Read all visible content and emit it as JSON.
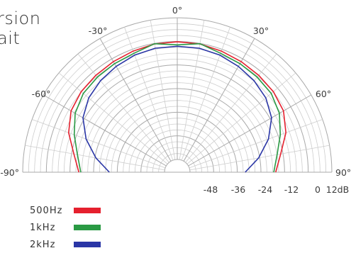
{
  "header": {
    "line1": "rsion",
    "line2": "ait"
  },
  "chart_data": {
    "type": "line",
    "subtype": "polar-half (directivity)",
    "angle_range_deg": [
      -90,
      90
    ],
    "radial_range_db": [
      -60,
      12
    ],
    "angle_labels": [
      "-90°",
      "-60°",
      "-30°",
      "0°",
      "30°",
      "60°",
      "90°"
    ],
    "db_tick_labels": [
      "-48",
      "-36",
      "-24",
      "-12",
      "0",
      "12dB"
    ],
    "db_tick_values": [
      -48,
      -36,
      -24,
      -12,
      0,
      12
    ],
    "grid": true,
    "legend_placement": "bottom-left",
    "angles": [
      -90,
      -80,
      -70,
      -60,
      -50,
      -40,
      -30,
      -20,
      -10,
      0,
      10,
      20,
      30,
      40,
      50,
      60,
      70,
      80,
      90
    ],
    "series": [
      {
        "name": "500Hz",
        "color": "#e5202e",
        "values": [
          -16.5,
          -13.2,
          -7.8,
          -4.2,
          -2.8,
          -2.2,
          -1.6,
          -1.0,
          -0.3,
          -0.2,
          -0.3,
          -1.0,
          -1.6,
          -2.2,
          -2.8,
          -4.2,
          -7.8,
          -13.2,
          -16.5
        ]
      },
      {
        "name": "1kHz",
        "color": "#2a9a44",
        "values": [
          -17.5,
          -15.0,
          -10.8,
          -6.6,
          -4.2,
          -3.4,
          -2.8,
          -2.2,
          -0.2,
          -1.8,
          -0.2,
          -2.2,
          -2.8,
          -3.4,
          -4.2,
          -6.6,
          -10.8,
          -15.0,
          -17.5
        ]
      },
      {
        "name": "2kHz",
        "color": "#2a36a6",
        "values": [
          -32.0,
          -24.5,
          -17.2,
          -11.2,
          -7.8,
          -5.8,
          -4.4,
          -3.2,
          -2.5,
          -2.5,
          -2.5,
          -3.2,
          -4.4,
          -5.8,
          -7.8,
          -11.2,
          -17.2,
          -24.5,
          -32.0
        ]
      }
    ]
  }
}
